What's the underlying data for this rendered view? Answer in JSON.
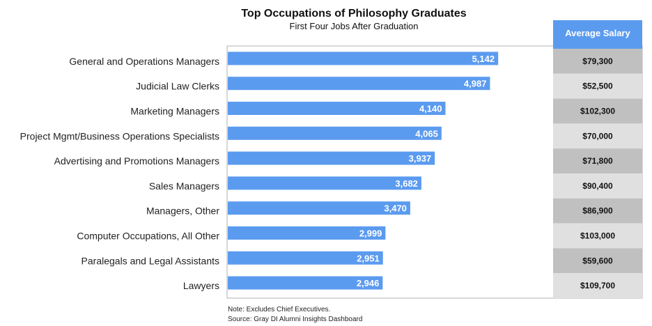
{
  "chart_data": {
    "type": "bar",
    "orientation": "horizontal",
    "title": "Top Occupations of Philosophy Graduates",
    "subtitle": "First Four Jobs After Graduation",
    "categories": [
      "General and Operations Managers",
      "Judicial Law Clerks",
      "Marketing Managers",
      "Project Mgmt/Business Operations Specialists",
      "Advertising and Promotions Managers",
      "Sales Managers",
      "Managers, Other",
      "Computer Occupations, All Other",
      "Paralegals and Legal Assistants",
      "Lawyers"
    ],
    "values": [
      5142,
      4987,
      4140,
      4065,
      3937,
      3682,
      3470,
      2999,
      2951,
      2946
    ],
    "value_labels": [
      "5,142",
      "4,987",
      "4,140",
      "4,065",
      "3,937",
      "3,682",
      "3,470",
      "2,999",
      "2,951",
      "2,946"
    ],
    "xlim": [
      0,
      6200
    ],
    "grid": false,
    "legend": "none",
    "bar_color": "#5b9bef",
    "table": {
      "header": "Average Salary",
      "header_color": "#5b9bef",
      "values": [
        "$79,300",
        "$52,500",
        "$102,300",
        "$70,000",
        "$71,800",
        "$90,400",
        "$86,900",
        "$103,000",
        "$59,600",
        "$109,700"
      ],
      "row_colors": [
        "#c0c0c0",
        "#e0e0e0"
      ]
    },
    "notes": [
      "Note: Excludes Chief Executives.",
      "Source: Gray DI Alumni Insights Dashboard"
    ]
  }
}
